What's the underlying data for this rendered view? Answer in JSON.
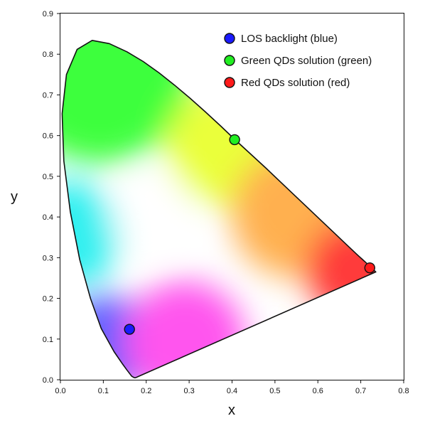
{
  "chart_data": {
    "type": "scatter",
    "title": "",
    "xlabel": "x",
    "ylabel": "y",
    "xlim": [
      0,
      0.8
    ],
    "ylim": [
      0,
      0.9
    ],
    "x_ticks": [
      "0.0",
      "0.1",
      "0.2",
      "0.3",
      "0.4",
      "0.5",
      "0.6",
      "0.7",
      "0.8"
    ],
    "y_ticks": [
      "0.0",
      "0.1",
      "0.2",
      "0.3",
      "0.4",
      "0.5",
      "0.6",
      "0.7",
      "0.8",
      "0.9"
    ],
    "grid": false,
    "legend_position": "top-right",
    "background": "CIE 1931 chromaticity diagram",
    "locus": [
      [
        0.175,
        0.005
      ],
      [
        0.172,
        0.005
      ],
      [
        0.166,
        0.009
      ],
      [
        0.155,
        0.024
      ],
      [
        0.144,
        0.04
      ],
      [
        0.125,
        0.069
      ],
      [
        0.095,
        0.126
      ],
      [
        0.07,
        0.2
      ],
      [
        0.045,
        0.295
      ],
      [
        0.023,
        0.413
      ],
      [
        0.008,
        0.538
      ],
      [
        0.004,
        0.654
      ],
      [
        0.014,
        0.75
      ],
      [
        0.039,
        0.812
      ],
      [
        0.074,
        0.834
      ],
      [
        0.114,
        0.826
      ],
      [
        0.155,
        0.806
      ],
      [
        0.193,
        0.782
      ],
      [
        0.23,
        0.754
      ],
      [
        0.266,
        0.724
      ],
      [
        0.302,
        0.692
      ],
      [
        0.337,
        0.659
      ],
      [
        0.373,
        0.624
      ],
      [
        0.408,
        0.589
      ],
      [
        0.444,
        0.554
      ],
      [
        0.479,
        0.52
      ],
      [
        0.512,
        0.487
      ],
      [
        0.547,
        0.452
      ],
      [
        0.575,
        0.424
      ],
      [
        0.608,
        0.391
      ],
      [
        0.64,
        0.359
      ],
      [
        0.665,
        0.334
      ],
      [
        0.692,
        0.307
      ],
      [
        0.713,
        0.287
      ],
      [
        0.735,
        0.265
      ]
    ],
    "series": [
      {
        "name": "LOS backlight (blue)",
        "x": 0.161,
        "y": 0.124,
        "color": "#1a1aff"
      },
      {
        "name": "Green QDs solution (green)",
        "x": 0.406,
        "y": 0.59,
        "color": "#22ee22"
      },
      {
        "name": "Red QDs solution (red)",
        "x": 0.721,
        "y": 0.275,
        "color": "#ff1a1a"
      }
    ]
  }
}
